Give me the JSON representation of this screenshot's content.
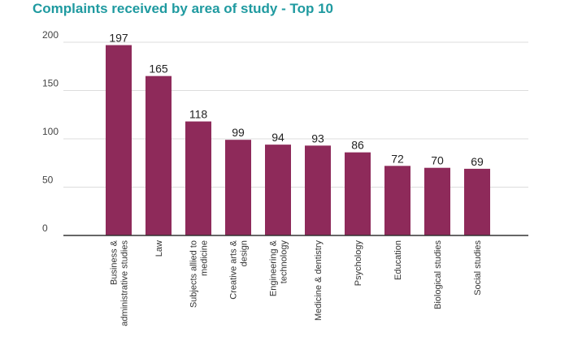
{
  "chart_data": {
    "type": "bar",
    "title": "Complaints received by area of study - Top 10",
    "categories": [
      [
        "Business &",
        "administrative studies"
      ],
      [
        "Law"
      ],
      [
        "Subjects allied to",
        "medicine"
      ],
      [
        "Creative arts &",
        "design"
      ],
      [
        "Engineering &",
        "technology"
      ],
      [
        "Medicine & dentistry"
      ],
      [
        "Psychology"
      ],
      [
        "Education"
      ],
      [
        "Biological studies"
      ],
      [
        "Social studies"
      ]
    ],
    "values": [
      197,
      165,
      118,
      99,
      94,
      93,
      86,
      72,
      70,
      69
    ],
    "data_labels": [
      "197",
      "165",
      "118",
      "99",
      "94",
      "93",
      "86",
      "72",
      "70",
      "69"
    ],
    "yticks": [
      0,
      50,
      100,
      150,
      200
    ],
    "ytick_labels": [
      "0",
      "50",
      "100",
      "150",
      "200"
    ],
    "ylim": [
      0,
      200
    ],
    "xlabel": "",
    "ylabel": "",
    "grid": true,
    "colors": {
      "bar": "#8e2a5a",
      "grid": "#dddddd",
      "axis": "#333333",
      "title": "#1f9aa0"
    }
  }
}
